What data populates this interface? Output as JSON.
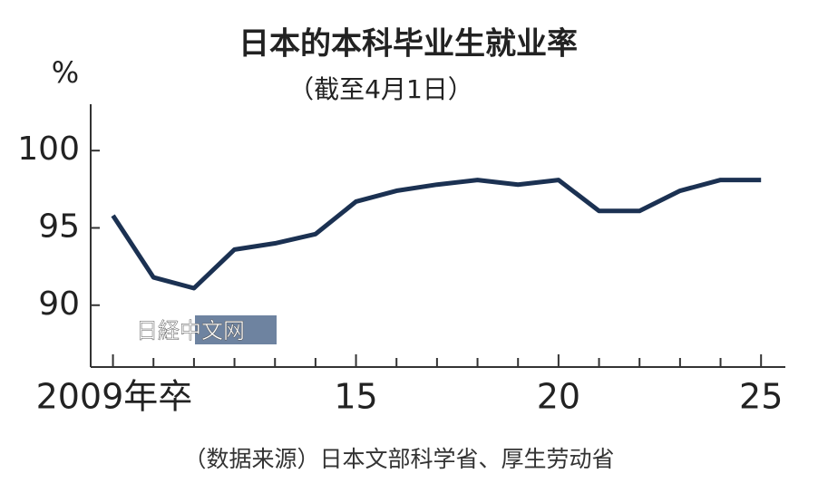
{
  "chart_data": {
    "type": "line",
    "title": "日本的本科毕业生就业率",
    "subtitle": "（截至4月1日）",
    "y_unit": "%",
    "source": "（数据来源）日本文部科学省、厚生劳动省",
    "watermark": "日経中文网",
    "x": [
      2009,
      2010,
      2011,
      2012,
      2013,
      2014,
      2015,
      2016,
      2017,
      2018,
      2019,
      2020,
      2021,
      2022,
      2023,
      2024,
      2025
    ],
    "series": [
      {
        "name": "就业率",
        "color": "#1b3152",
        "values": [
          95.8,
          91.8,
          91.1,
          93.6,
          94.0,
          94.6,
          96.7,
          97.4,
          97.8,
          98.1,
          97.8,
          98.1,
          96.1,
          96.1,
          97.4,
          98.1,
          98.1
        ]
      }
    ],
    "xlim": [
      2008.45,
      2025.6
    ],
    "ylim": [
      86,
      103
    ],
    "xticks": [
      {
        "value": 2009,
        "label": "2009年卒"
      },
      {
        "value": 2015,
        "label": "15"
      },
      {
        "value": 2020,
        "label": "20"
      },
      {
        "value": 2025,
        "label": "25"
      }
    ],
    "minor_xticks": [
      2010,
      2011,
      2012,
      2013,
      2014,
      2016,
      2017,
      2018,
      2019,
      2021,
      2022,
      2023,
      2024
    ],
    "yticks": [
      90,
      95,
      100
    ]
  }
}
